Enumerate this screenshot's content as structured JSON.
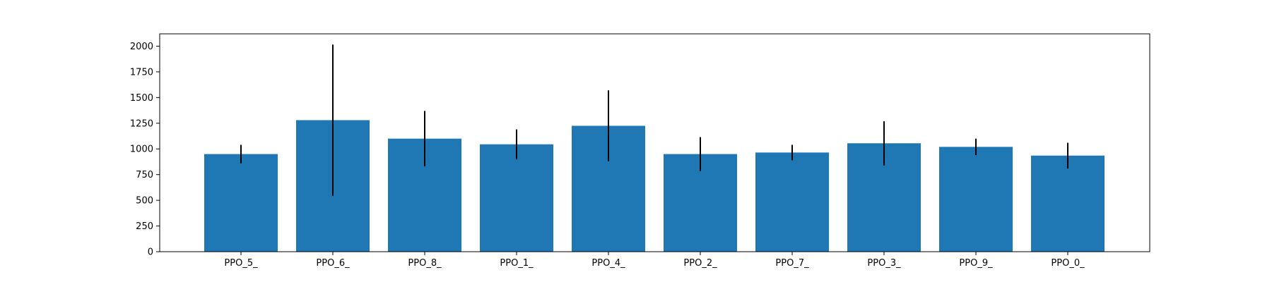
{
  "chart_data": {
    "type": "bar",
    "categories": [
      "PPO_5_",
      "PPO_6_",
      "PPO_8_",
      "PPO_1_",
      "PPO_4_",
      "PPO_2_",
      "PPO_7_",
      "PPO_3_",
      "PPO_9_",
      "PPO_0_"
    ],
    "values": [
      950,
      1280,
      1100,
      1045,
      1225,
      950,
      965,
      1055,
      1020,
      935
    ],
    "errors": [
      90,
      735,
      270,
      145,
      345,
      165,
      75,
      215,
      80,
      125
    ],
    "ylim": [
      0,
      2120
    ],
    "yticks": [
      0,
      250,
      500,
      750,
      1000,
      1250,
      1500,
      1750,
      2000
    ],
    "title": "",
    "xlabel": "",
    "ylabel": "",
    "grid": false,
    "colors": {
      "bar": "#1f77b4",
      "error": "#000000",
      "axis": "#000000"
    }
  }
}
